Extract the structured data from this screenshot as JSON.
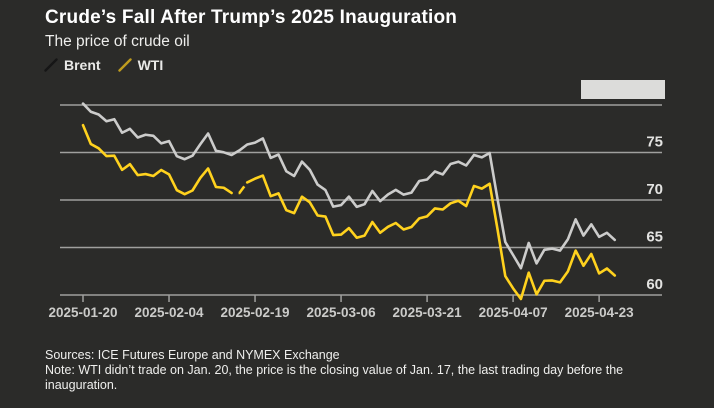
{
  "header": {
    "title": "Crude’s Fall After Trump’s 2025 Inauguration",
    "subtitle": "The price of crude oil"
  },
  "legend": {
    "items": [
      {
        "label": "Brent",
        "slash_color": "#161616"
      },
      {
        "label": "WTI",
        "slash_color": "#bf9c1e"
      }
    ]
  },
  "footer": {
    "sources": "Sources: ICE Futures Europe and NYMEX Exchange",
    "note": "Note: WTI didn’t trade on Jan. 20, the price is the closing value of Jan. 17, the last trading day before the inauguration."
  },
  "colors": {
    "background": "#2b2b29",
    "grid": "#a0a09e",
    "brent_line": "#cccccb",
    "wti_line": "#ffd21e",
    "ytick_text": "#e3e3e1",
    "xtick_text": "#cbcbc9",
    "redaction_box": "#dcdcda"
  },
  "chart_data": {
    "type": "line",
    "title": "Crude’s Fall After Trump’s 2025 Inauguration",
    "subtitle": "The price of crude oil",
    "grid": "horizontal",
    "legend_position": "top-left",
    "ylim": [
      58.5,
      81
    ],
    "yticks": [
      80,
      75,
      70,
      65,
      60
    ],
    "ytick_labels_shown": [
      75,
      70,
      65,
      60
    ],
    "xtick_indices": [
      0,
      11,
      22,
      33,
      44,
      55,
      66
    ],
    "xtick_labels": [
      "2025-01-20",
      "2025-02-04",
      "2025-02-19",
      "2025-03-06",
      "2025-03-21",
      "2025-04-07",
      "2025-04-23"
    ],
    "x": [
      "2025-01-20",
      "2025-01-21",
      "2025-01-22",
      "2025-01-23",
      "2025-01-24",
      "2025-01-27",
      "2025-01-28",
      "2025-01-29",
      "2025-01-30",
      "2025-01-31",
      "2025-02-03",
      "2025-02-04",
      "2025-02-05",
      "2025-02-06",
      "2025-02-07",
      "2025-02-10",
      "2025-02-11",
      "2025-02-12",
      "2025-02-13",
      "2025-02-14",
      "2025-02-17",
      "2025-02-18",
      "2025-02-19",
      "2025-02-20",
      "2025-02-21",
      "2025-02-24",
      "2025-02-25",
      "2025-02-26",
      "2025-02-27",
      "2025-02-28",
      "2025-03-03",
      "2025-03-04",
      "2025-03-05",
      "2025-03-06",
      "2025-03-07",
      "2025-03-10",
      "2025-03-11",
      "2025-03-12",
      "2025-03-13",
      "2025-03-14",
      "2025-03-17",
      "2025-03-18",
      "2025-03-19",
      "2025-03-20",
      "2025-03-21",
      "2025-03-24",
      "2025-03-25",
      "2025-03-26",
      "2025-03-27",
      "2025-03-28",
      "2025-03-31",
      "2025-04-01",
      "2025-04-02",
      "2025-04-03",
      "2025-04-04",
      "2025-04-07",
      "2025-04-08",
      "2025-04-09",
      "2025-04-10",
      "2025-04-11",
      "2025-04-14",
      "2025-04-15",
      "2025-04-16",
      "2025-04-17",
      "2025-04-21",
      "2025-04-22",
      "2025-04-23",
      "2025-04-24",
      "2025-04-25"
    ],
    "series": [
      {
        "name": "Brent",
        "color": "#cccccb",
        "values": [
          80.15,
          79.29,
          79.0,
          78.29,
          78.5,
          77.08,
          77.49,
          76.58,
          76.87,
          76.76,
          75.96,
          76.2,
          74.61,
          74.29,
          74.66,
          75.87,
          77.0,
          75.18,
          75.02,
          74.74,
          75.22,
          75.84,
          76.04,
          76.48,
          74.43,
          74.78,
          73.02,
          72.53,
          74.04,
          73.18,
          71.62,
          71.04,
          69.3,
          69.46,
          70.36,
          69.28,
          69.56,
          70.95,
          69.88,
          70.58,
          71.07,
          70.56,
          70.78,
          72.0,
          72.16,
          73.0,
          72.69,
          73.79,
          74.03,
          73.63,
          74.74,
          74.49,
          74.95,
          70.14,
          65.58,
          64.21,
          62.82,
          65.48,
          63.33,
          64.76,
          64.88,
          64.67,
          65.85,
          67.96,
          66.26,
          67.44,
          66.12,
          66.55,
          65.8
        ]
      },
      {
        "name": "WTI",
        "color": "#ffd21e",
        "values": [
          77.88,
          75.89,
          75.44,
          74.62,
          74.66,
          73.17,
          73.77,
          72.62,
          72.73,
          72.53,
          73.16,
          72.7,
          71.03,
          70.61,
          71.0,
          72.32,
          73.32,
          71.37,
          71.29,
          70.74,
          70.74,
          71.85,
          72.25,
          72.57,
          70.4,
          70.7,
          68.93,
          68.62,
          70.35,
          69.76,
          68.37,
          68.26,
          66.31,
          66.36,
          67.04,
          66.03,
          66.25,
          67.68,
          66.55,
          67.18,
          67.58,
          66.9,
          67.16,
          68.07,
          68.28,
          69.11,
          69.0,
          69.65,
          69.92,
          69.36,
          71.48,
          71.2,
          71.71,
          66.95,
          61.99,
          60.7,
          59.58,
          62.35,
          60.07,
          61.5,
          61.53,
          61.33,
          62.47,
          64.68,
          63.08,
          64.32,
          62.27,
          62.79,
          62.05
        ]
      }
    ],
    "wti_dash_segment": {
      "from_index": 19,
      "to_index": 21,
      "dasharray": "0 7 9 7"
    }
  }
}
